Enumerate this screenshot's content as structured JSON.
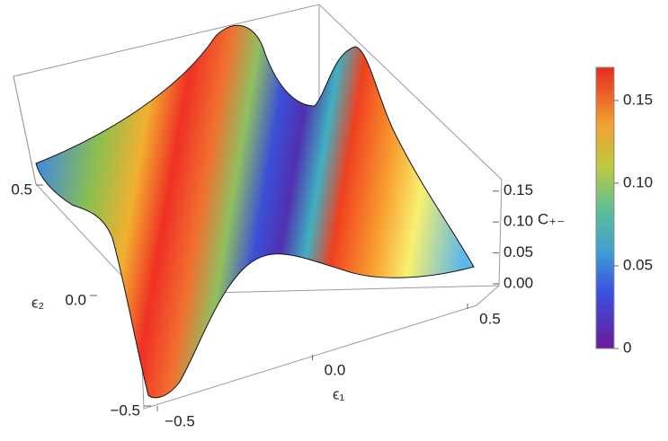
{
  "chart_data": {
    "type": "surface3d",
    "xlabel": "ϵ₁",
    "ylabel": "ϵ₂",
    "zlabel": "C₊₋",
    "xlim": [
      -0.5,
      0.5
    ],
    "xticks": [
      {
        "value": -0.5,
        "label": "−0.5"
      },
      {
        "value": 0,
        "label": "0.0"
      },
      0.5
    ],
    "ylim": [
      -0.5,
      0.5
    ],
    "yticks": [
      {
        "value": -0.5,
        "label": "−0.5"
      },
      {
        "value": 0,
        "label": "0.0"
      },
      0.5
    ],
    "zlim": [
      0,
      0.17
    ],
    "zticks": [
      {
        "value": 0,
        "label": "0.00"
      },
      0.05,
      {
        "value": 0.1,
        "label": "0.10"
      },
      0.15
    ],
    "colorbar": {
      "lim": [
        0,
        0.17
      ],
      "ticks": [
        0,
        0.05,
        {
          "value": 0.1,
          "label": "0.10"
        },
        0.15
      ]
    }
  }
}
